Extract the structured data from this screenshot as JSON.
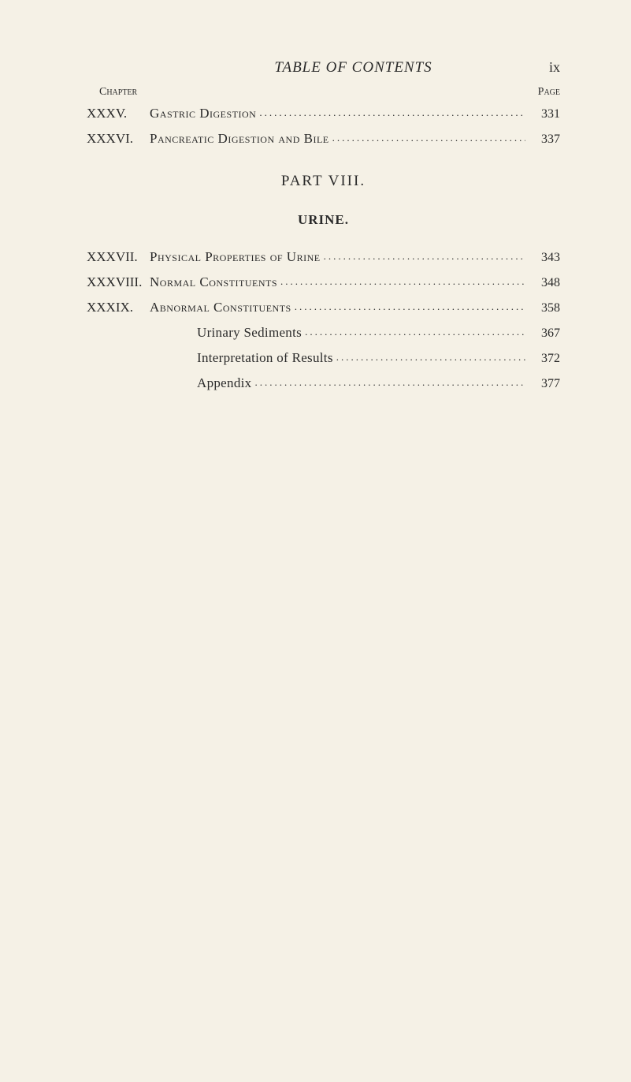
{
  "header": {
    "title": "TABLE OF CONTENTS",
    "page_label": "ix"
  },
  "column_headers": {
    "chapter": "Chapter",
    "page": "Page"
  },
  "top_entries": [
    {
      "chapter": "XXXV.",
      "title": "Gastric Digestion",
      "page": "331"
    },
    {
      "chapter": "XXXVI.",
      "title": "Pancreatic Digestion and Bile",
      "page": "337"
    }
  ],
  "part": {
    "heading": "PART VIII.",
    "section": "URINE."
  },
  "main_entries": [
    {
      "chapter": "XXXVII.",
      "title": "Physical Properties of Urine",
      "page": "343"
    },
    {
      "chapter": "XXXVIII.",
      "title": "Normal Constituents",
      "page": "348"
    },
    {
      "chapter": "XXXIX.",
      "title": "Abnormal Constituents",
      "page": "358"
    }
  ],
  "sub_entries": [
    {
      "title": "Urinary Sediments",
      "page": "367"
    },
    {
      "title": "Interpretation of Results",
      "page": "372"
    },
    {
      "title": "Appendix",
      "page": "377"
    }
  ],
  "leader_dots": "........................................................................................................"
}
